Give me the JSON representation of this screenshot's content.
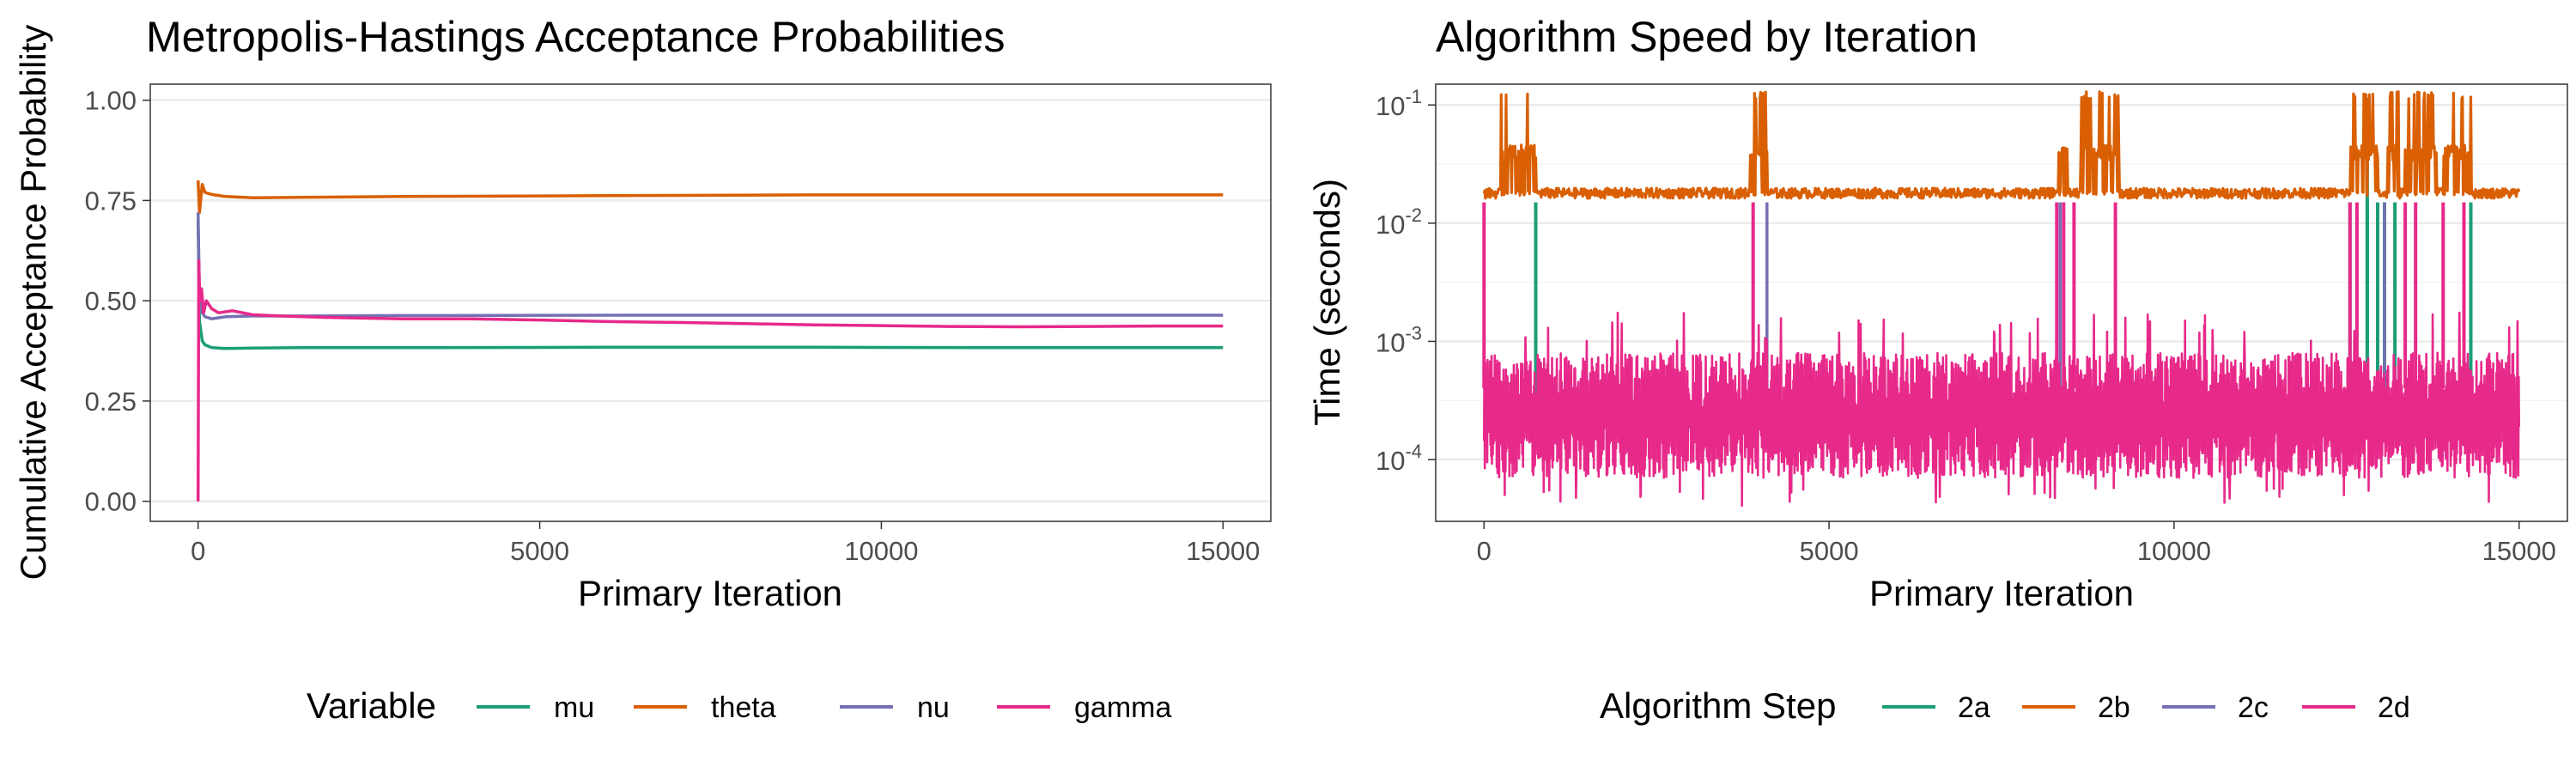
{
  "chart_data": [
    {
      "type": "line",
      "title": "Metropolis-Hastings Acceptance Probabilities",
      "xlabel": "Primary Iteration",
      "ylabel": "Cumulative Acceptance Probability",
      "xlim": [
        -700,
        15700
      ],
      "ylim": [
        -0.05,
        1.04
      ],
      "x_ticks": [
        0,
        5000,
        10000,
        15000
      ],
      "x_tick_labels": [
        "0",
        "5000",
        "10000",
        "15000"
      ],
      "y_ticks": [
        0,
        0.25,
        0.5,
        0.75,
        1.0
      ],
      "y_tick_labels": [
        "0.00",
        "0.25",
        "0.50",
        "0.75",
        "1.00"
      ],
      "grid": true,
      "legend": {
        "title": "Variable",
        "position": "bottom"
      },
      "series": [
        {
          "name": "mu",
          "color": "#1b9e77",
          "x": [
            0,
            20,
            60,
            100,
            200,
            400,
            800,
            1500,
            3000,
            6000,
            9000,
            12000,
            15000
          ],
          "y": [
            0.7,
            0.45,
            0.4,
            0.39,
            0.383,
            0.381,
            0.382,
            0.383,
            0.383,
            0.384,
            0.384,
            0.383,
            0.383
          ]
        },
        {
          "name": "theta",
          "color": "#d95f02",
          "x": [
            0,
            20,
            60,
            100,
            200,
            400,
            800,
            1500,
            3000,
            6000,
            9000,
            12000,
            15000
          ],
          "y": [
            0.8,
            0.72,
            0.79,
            0.77,
            0.765,
            0.76,
            0.757,
            0.758,
            0.76,
            0.762,
            0.764,
            0.764,
            0.764
          ]
        },
        {
          "name": "nu",
          "color": "#7570b3",
          "x": [
            0,
            20,
            60,
            100,
            200,
            400,
            800,
            1500,
            3000,
            6000,
            9000,
            12000,
            15000
          ],
          "y": [
            0.72,
            0.5,
            0.47,
            0.46,
            0.455,
            0.46,
            0.462,
            0.462,
            0.463,
            0.464,
            0.464,
            0.464,
            0.464
          ]
        },
        {
          "name": "gamma",
          "color": "#e7298a",
          "x": [
            0,
            10,
            25,
            50,
            80,
            120,
            200,
            300,
            500,
            800,
            1200,
            2000,
            3000,
            4000,
            5000,
            6000,
            7000,
            8000,
            9000,
            10000,
            11000,
            12000,
            13000,
            14000,
            15000
          ],
          "y": [
            0.0,
            0.6,
            0.5,
            0.53,
            0.47,
            0.5,
            0.48,
            0.47,
            0.475,
            0.465,
            0.462,
            0.458,
            0.455,
            0.455,
            0.452,
            0.448,
            0.446,
            0.443,
            0.44,
            0.438,
            0.436,
            0.435,
            0.436,
            0.437,
            0.437
          ]
        }
      ]
    },
    {
      "type": "line",
      "title": "Algorithm Speed by Iteration",
      "xlabel": "Primary Iteration",
      "ylabel": "Time (seconds)",
      "y_scale": "log10",
      "xlim": [
        -700,
        15700
      ],
      "ylim": [
        3e-05,
        0.15
      ],
      "x_ticks": [
        0,
        5000,
        10000,
        15000
      ],
      "x_tick_labels": [
        "0",
        "5000",
        "10000",
        "15000"
      ],
      "y_ticks": [
        0.0001,
        0.001,
        0.01,
        0.1
      ],
      "y_tick_labels": [
        {
          "base": "10",
          "exp": "-4"
        },
        {
          "base": "10",
          "exp": "-3"
        },
        {
          "base": "10",
          "exp": "-2"
        },
        {
          "base": "10",
          "exp": "-1"
        }
      ],
      "grid": true,
      "legend": {
        "title": "Algorithm Step",
        "position": "bottom"
      },
      "series": [
        {
          "name": "2a",
          "color": "#1b9e77",
          "baseline": 0.0002,
          "spikes_x": [
            750,
            12550,
            12800,
            12950,
            13050,
            13200,
            14300
          ],
          "spike_top": 0.015
        },
        {
          "name": "2b",
          "color": "#d95f02",
          "baseline": 0.018,
          "bursts": [
            [
              250,
              750
            ],
            [
              3850,
              4100
            ],
            [
              8300,
              8450
            ],
            [
              8650,
              9200
            ],
            [
              12550,
              12950
            ],
            [
              13100,
              13250
            ],
            [
              13350,
              13800
            ],
            [
              13900,
              14300
            ]
          ],
          "burst_level": 0.04,
          "burst_peak": 0.13
        },
        {
          "name": "2c",
          "color": "#7570b3",
          "baseline": 0.0002,
          "spikes_x": [
            4100,
            8350,
            13050
          ],
          "spike_top": 0.015
        },
        {
          "name": "2d",
          "color": "#e7298a",
          "low": 7e-05,
          "high": 0.0008,
          "spikes_x": [
            0,
            3900,
            8300,
            8400,
            8550,
            9150,
            12550,
            12650,
            13350,
            13500,
            13900,
            14200
          ],
          "spike_top": 0.015
        }
      ]
    }
  ]
}
